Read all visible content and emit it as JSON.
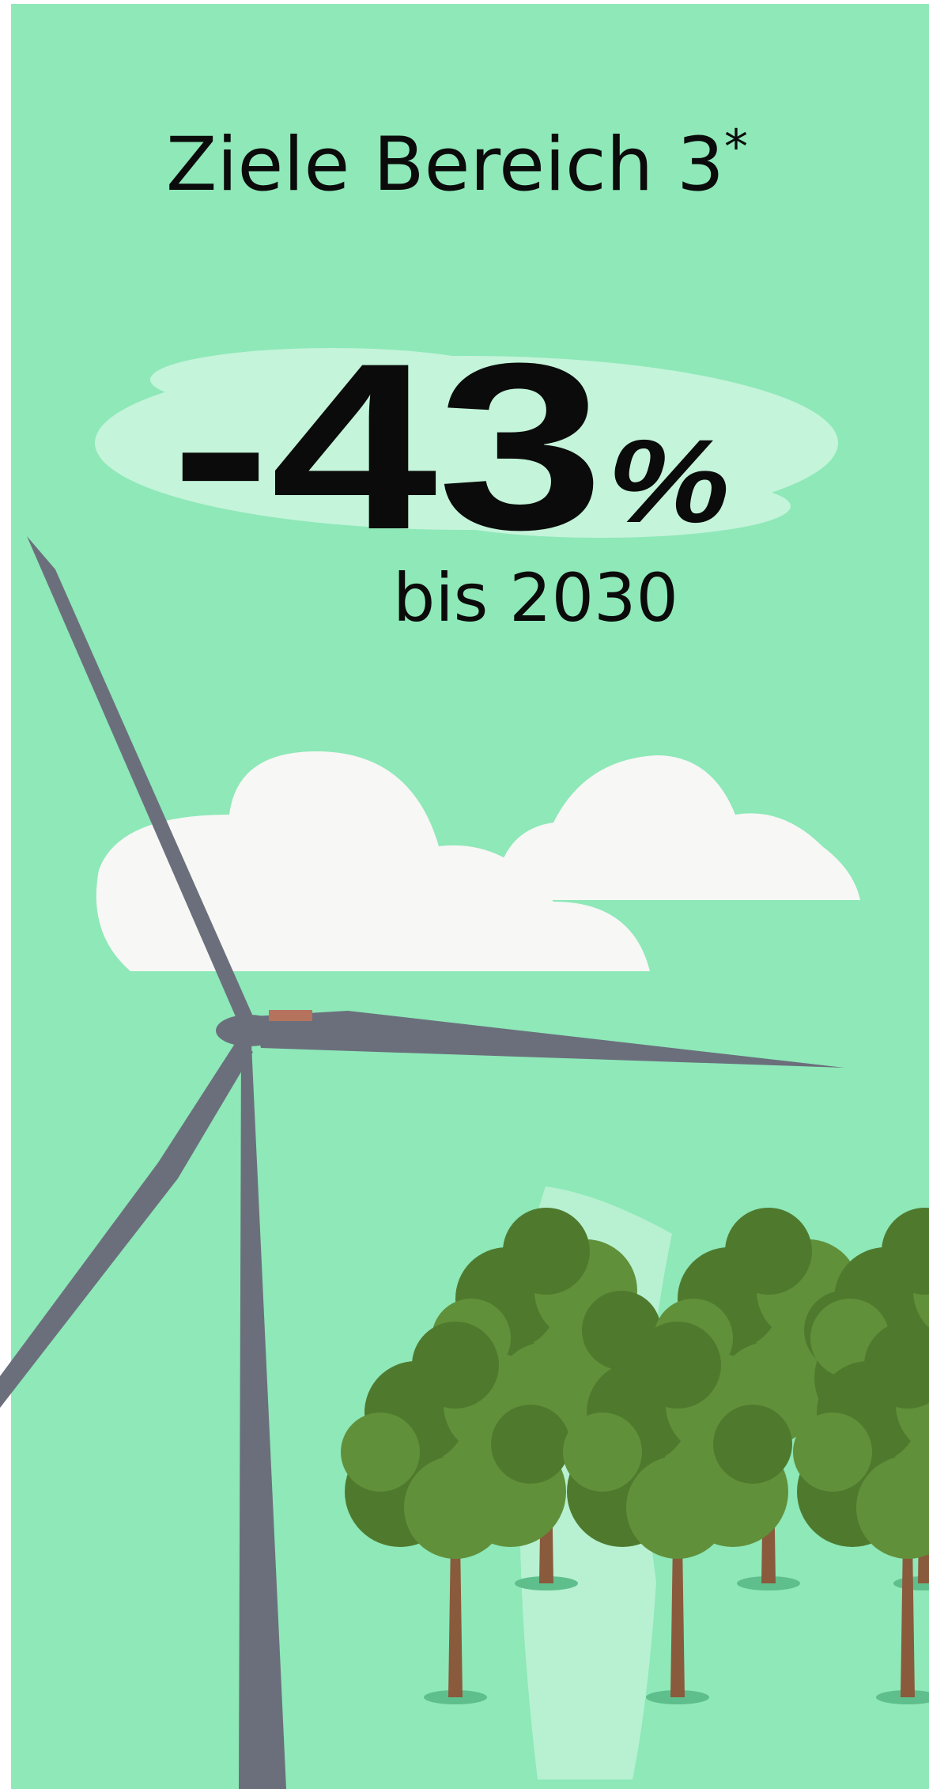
{
  "title": "Ziele Bereich 3",
  "title_mark": "*",
  "figure": "-43",
  "figure_unit": "%",
  "subtitle": "bis 2030"
}
